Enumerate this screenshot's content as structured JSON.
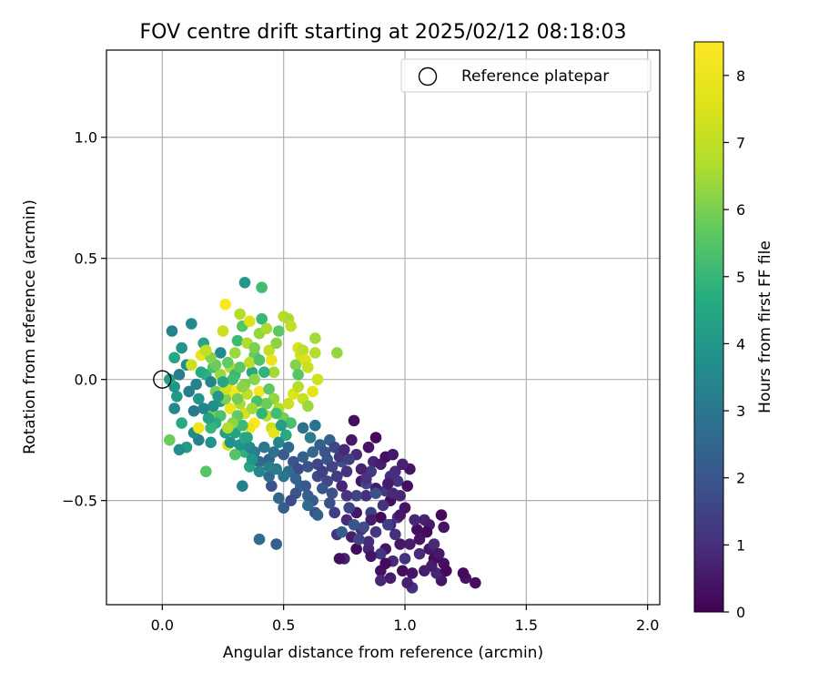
{
  "chart_data": {
    "type": "scatter",
    "title": "FOV centre drift starting at 2025/02/12 08:18:03",
    "xlabel": "Angular distance from reference (arcmin)",
    "ylabel": "Rotation from reference (arcmin)",
    "xlim": [
      -0.23,
      2.05
    ],
    "ylim": [
      -0.93,
      1.36
    ],
    "xticks": [
      0.0,
      0.5,
      1.0,
      1.5,
      2.0
    ],
    "xtick_labels": [
      "0.0",
      "0.5",
      "1.0",
      "1.5",
      "2.0"
    ],
    "yticks": [
      -0.5,
      0.0,
      0.5,
      1.0
    ],
    "ytick_labels": [
      "−0.5",
      "0.0",
      "0.5",
      "1.0"
    ],
    "grid": true,
    "legend": {
      "position": "top-right",
      "entries": [
        {
          "label": "Reference platepar",
          "marker": "open-circle"
        }
      ]
    },
    "reference_point": {
      "x": 0.0,
      "y": 0.0
    },
    "colorbar": {
      "label": "Hours from first FF file",
      "colormap": "viridis",
      "range": [
        0,
        8.5
      ],
      "ticks": [
        0,
        1,
        2,
        3,
        4,
        5,
        6,
        7,
        8
      ],
      "tick_labels": [
        "0",
        "1",
        "2",
        "3",
        "4",
        "5",
        "6",
        "7",
        "8"
      ]
    },
    "points": [
      [
        1.29,
        -0.84,
        0.3
      ],
      [
        1.25,
        -0.82,
        0.4
      ],
      [
        1.24,
        -0.8,
        0.2
      ],
      [
        1.15,
        -0.83,
        0.5
      ],
      [
        1.16,
        -0.76,
        0.3
      ],
      [
        1.13,
        -0.8,
        0.8
      ],
      [
        1.1,
        -0.7,
        0.5
      ],
      [
        1.12,
        -0.74,
        0.2
      ],
      [
        1.08,
        -0.79,
        0.6
      ],
      [
        1.03,
        -0.86,
        1.0
      ],
      [
        1.03,
        -0.8,
        0.4
      ],
      [
        1.06,
        -0.72,
        0.9
      ],
      [
        1.05,
        -0.62,
        0.3
      ],
      [
        1.08,
        -0.58,
        0.7
      ],
      [
        1.15,
        -0.56,
        0.2
      ],
      [
        1.16,
        -0.61,
        0.4
      ],
      [
        1.1,
        -0.6,
        0.6
      ],
      [
        1.0,
        -0.74,
        1.1
      ],
      [
        0.98,
        -0.68,
        0.5
      ],
      [
        0.95,
        -0.75,
        0.9
      ],
      [
        0.92,
        -0.7,
        0.4
      ],
      [
        0.9,
        -0.79,
        0.3
      ],
      [
        0.9,
        -0.72,
        1.2
      ],
      [
        0.85,
        -0.7,
        0.8
      ],
      [
        0.8,
        -0.7,
        0.2
      ],
      [
        0.82,
        -0.62,
        1.0
      ],
      [
        0.78,
        -0.65,
        0.6
      ],
      [
        0.75,
        -0.74,
        0.7
      ],
      [
        0.73,
        -0.74,
        0.3
      ],
      [
        0.72,
        -0.64,
        1.1
      ],
      [
        0.76,
        -0.58,
        0.9
      ],
      [
        0.8,
        -0.55,
        0.5
      ],
      [
        0.86,
        -0.55,
        1.4
      ],
      [
        0.9,
        -0.57,
        0.2
      ],
      [
        0.94,
        -0.6,
        0.7
      ],
      [
        0.97,
        -0.57,
        1.0
      ],
      [
        1.0,
        -0.53,
        0.4
      ],
      [
        0.98,
        -0.48,
        0.8
      ],
      [
        0.94,
        -0.5,
        0.3
      ],
      [
        0.92,
        -0.46,
        1.3
      ],
      [
        0.88,
        -0.45,
        0.6
      ],
      [
        0.84,
        -0.48,
        1.0
      ],
      [
        0.82,
        -0.42,
        0.4
      ],
      [
        0.8,
        -0.48,
        1.5
      ],
      [
        0.76,
        -0.48,
        1.2
      ],
      [
        0.74,
        -0.44,
        0.8
      ],
      [
        0.7,
        -0.47,
        1.9
      ],
      [
        0.68,
        -0.42,
        1.6
      ],
      [
        0.66,
        -0.45,
        2.0
      ],
      [
        0.64,
        -0.4,
        1.7
      ],
      [
        0.62,
        -0.5,
        2.1
      ],
      [
        0.63,
        -0.55,
        1.8
      ],
      [
        0.6,
        -0.48,
        2.2
      ],
      [
        0.57,
        -0.44,
        2.4
      ],
      [
        0.55,
        -0.47,
        2.0
      ],
      [
        0.53,
        -0.5,
        1.7
      ],
      [
        0.5,
        -0.53,
        2.2
      ],
      [
        0.48,
        -0.49,
        2.5
      ],
      [
        0.45,
        -0.44,
        1.9
      ],
      [
        0.44,
        -0.4,
        2.6
      ],
      [
        0.47,
        -0.68,
        2.3
      ],
      [
        0.4,
        -0.66,
        2.7
      ],
      [
        0.33,
        -0.44,
        3.3
      ],
      [
        0.36,
        -0.36,
        4.4
      ],
      [
        0.34,
        -0.3,
        4.8
      ],
      [
        0.3,
        -0.31,
        5.5
      ],
      [
        0.27,
        -0.27,
        7.5
      ],
      [
        0.26,
        -0.22,
        4.2
      ],
      [
        0.2,
        -0.26,
        3.8
      ],
      [
        0.18,
        -0.38,
        5.5
      ],
      [
        0.15,
        -0.25,
        3.3
      ],
      [
        0.13,
        -0.22,
        3.6
      ],
      [
        0.15,
        -0.2,
        8.0
      ],
      [
        0.1,
        -0.28,
        4.1
      ],
      [
        0.07,
        -0.29,
        3.7
      ],
      [
        0.03,
        -0.25,
        5.8
      ],
      [
        0.08,
        -0.18,
        4.6
      ],
      [
        0.13,
        -0.13,
        3.0
      ],
      [
        0.05,
        -0.12,
        3.5
      ],
      [
        0.06,
        -0.07,
        4.0
      ],
      [
        0.11,
        -0.05,
        3.2
      ],
      [
        0.05,
        -0.03,
        3.8
      ],
      [
        0.03,
        0.0,
        4.2
      ],
      [
        0.07,
        0.02,
        3.1
      ],
      [
        0.1,
        0.06,
        3.6
      ],
      [
        0.05,
        0.09,
        4.5
      ],
      [
        0.08,
        0.13,
        3.9
      ],
      [
        0.04,
        0.2,
        3.3
      ],
      [
        0.12,
        0.23,
        3.5
      ],
      [
        0.12,
        0.06,
        7.2
      ],
      [
        0.17,
        0.15,
        4.4
      ],
      [
        0.16,
        0.1,
        7.9
      ],
      [
        0.18,
        0.02,
        4.8
      ],
      [
        0.21,
        0.05,
        5.3
      ],
      [
        0.2,
        -0.01,
        3.4
      ],
      [
        0.22,
        -0.05,
        5.9
      ],
      [
        0.24,
        -0.09,
        4.1
      ],
      [
        0.21,
        -0.14,
        6.0
      ],
      [
        0.24,
        0.11,
        3.6
      ],
      [
        0.25,
        0.2,
        7.2
      ],
      [
        0.26,
        0.31,
        8.4
      ],
      [
        0.28,
        0.05,
        6.8
      ],
      [
        0.27,
        -0.02,
        7.6
      ],
      [
        0.29,
        -0.06,
        8.2
      ],
      [
        0.3,
        0.11,
        6.4
      ],
      [
        0.31,
        0.16,
        5.1
      ],
      [
        0.32,
        0.27,
        6.8
      ],
      [
        0.34,
        0.4,
        4.0
      ],
      [
        0.33,
        0.22,
        5.5
      ],
      [
        0.35,
        0.15,
        6.7
      ],
      [
        0.36,
        0.24,
        7.6
      ],
      [
        0.37,
        0.03,
        4.6
      ],
      [
        0.38,
        0.1,
        5.7
      ],
      [
        0.4,
        0.19,
        6.3
      ],
      [
        0.41,
        0.25,
        5.0
      ],
      [
        0.41,
        0.38,
        5.2
      ],
      [
        0.43,
        0.21,
        6.6
      ],
      [
        0.44,
        0.12,
        7.0
      ],
      [
        0.45,
        0.08,
        7.9
      ],
      [
        0.46,
        0.03,
        6.5
      ],
      [
        0.47,
        0.15,
        6.2
      ],
      [
        0.48,
        0.2,
        5.6
      ],
      [
        0.5,
        0.26,
        6.8
      ],
      [
        0.52,
        0.25,
        6.6
      ],
      [
        0.53,
        0.22,
        7.0
      ],
      [
        0.55,
        0.06,
        6.1
      ],
      [
        0.56,
        0.13,
        7.4
      ],
      [
        0.57,
        0.1,
        7.3
      ],
      [
        0.58,
        0.12,
        6.9
      ],
      [
        0.59,
        0.08,
        7.5
      ],
      [
        0.6,
        0.05,
        7.1
      ],
      [
        0.63,
        0.11,
        6.7
      ],
      [
        0.63,
        0.17,
        6.5
      ],
      [
        0.72,
        0.11,
        6.3
      ],
      [
        0.38,
        0.0,
        6.2
      ],
      [
        0.4,
        -0.05,
        8.3
      ],
      [
        0.42,
        -0.1,
        7.7
      ],
      [
        0.43,
        -0.15,
        6.9
      ],
      [
        0.45,
        -0.2,
        7.2
      ],
      [
        0.46,
        -0.22,
        7.8
      ],
      [
        0.38,
        -0.18,
        8.5
      ],
      [
        0.36,
        -0.2,
        8.0
      ],
      [
        0.34,
        -0.14,
        7.4
      ],
      [
        0.32,
        -0.1,
        6.6
      ],
      [
        0.3,
        -0.05,
        8.3
      ],
      [
        0.28,
        -0.12,
        8.1
      ],
      [
        0.26,
        -0.08,
        6.0
      ],
      [
        0.24,
        -0.15,
        5.4
      ],
      [
        0.22,
        -0.18,
        4.7
      ],
      [
        0.2,
        -0.2,
        5.0
      ],
      [
        0.28,
        -0.26,
        3.8
      ],
      [
        0.3,
        -0.22,
        4.3
      ],
      [
        0.32,
        -0.27,
        3.9
      ],
      [
        0.34,
        -0.24,
        4.7
      ],
      [
        0.36,
        -0.28,
        3.6
      ],
      [
        0.38,
        -0.3,
        3.2
      ],
      [
        0.4,
        -0.34,
        2.6
      ],
      [
        0.42,
        -0.28,
        3.0
      ],
      [
        0.44,
        -0.33,
        2.4
      ],
      [
        0.46,
        -0.3,
        2.8
      ],
      [
        0.48,
        -0.26,
        3.4
      ],
      [
        0.5,
        -0.31,
        2.2
      ],
      [
        0.52,
        -0.28,
        2.6
      ],
      [
        0.54,
        -0.34,
        2.0
      ],
      [
        0.56,
        -0.37,
        1.7
      ],
      [
        0.58,
        -0.32,
        2.3
      ],
      [
        0.6,
        -0.36,
        1.9
      ],
      [
        0.62,
        -0.3,
        2.5
      ],
      [
        0.64,
        -0.35,
        1.6
      ],
      [
        0.66,
        -0.38,
        1.4
      ],
      [
        0.68,
        -0.33,
        2.0
      ],
      [
        0.7,
        -0.36,
        1.5
      ],
      [
        0.72,
        -0.4,
        1.3
      ],
      [
        0.74,
        -0.34,
        1.8
      ],
      [
        0.76,
        -0.38,
        1.1
      ],
      [
        0.78,
        -0.25,
        0.5
      ],
      [
        0.8,
        -0.31,
        0.9
      ],
      [
        0.79,
        -0.17,
        0.3
      ],
      [
        0.85,
        -0.28,
        0.4
      ],
      [
        0.87,
        -0.34,
        0.8
      ],
      [
        0.88,
        -0.24,
        0.2
      ],
      [
        0.9,
        -0.35,
        0.6
      ],
      [
        0.92,
        -0.32,
        0.3
      ],
      [
        0.95,
        -0.31,
        0.5
      ],
      [
        0.96,
        -0.38,
        0.9
      ],
      [
        0.97,
        -0.42,
        1.2
      ],
      [
        1.02,
        -0.37,
        0.4
      ],
      [
        0.99,
        -0.35,
        0.7
      ],
      [
        0.94,
        -0.4,
        1.0
      ],
      [
        0.86,
        -0.38,
        1.3
      ],
      [
        0.84,
        -0.43,
        1.6
      ],
      [
        0.88,
        -0.47,
        1.9
      ],
      [
        0.91,
        -0.52,
        1.1
      ],
      [
        0.86,
        -0.58,
        0.6
      ],
      [
        0.83,
        -0.61,
        1.7
      ],
      [
        0.79,
        -0.6,
        2.0
      ],
      [
        0.77,
        -0.53,
        1.5
      ],
      [
        0.74,
        -0.63,
        2.2
      ],
      [
        0.71,
        -0.55,
        1.4
      ],
      [
        0.69,
        -0.51,
        1.8
      ],
      [
        0.64,
        -0.56,
        2.3
      ],
      [
        0.6,
        -0.52,
        2.6
      ],
      [
        0.59,
        -0.44,
        2.1
      ],
      [
        0.55,
        -0.41,
        2.4
      ],
      [
        0.52,
        -0.38,
        2.7
      ],
      [
        0.5,
        -0.4,
        2.9
      ],
      [
        0.47,
        -0.37,
        3.1
      ],
      [
        0.44,
        -0.36,
        3.3
      ],
      [
        0.4,
        -0.38,
        3.5
      ],
      [
        0.37,
        -0.33,
        3.9
      ],
      [
        0.35,
        -0.24,
        4.4
      ],
      [
        0.33,
        -0.19,
        5.1
      ],
      [
        0.31,
        -0.15,
        5.7
      ],
      [
        0.29,
        -0.18,
        6.2
      ],
      [
        0.27,
        -0.2,
        6.7
      ],
      [
        0.26,
        -0.04,
        7.3
      ],
      [
        0.24,
        0.02,
        6.4
      ],
      [
        0.22,
        0.06,
        5.8
      ],
      [
        0.2,
        0.09,
        6.1
      ],
      [
        0.18,
        0.12,
        7.0
      ],
      [
        0.3,
        0.02,
        5.0
      ],
      [
        0.32,
        0.05,
        5.6
      ],
      [
        0.34,
        -0.02,
        6.0
      ],
      [
        0.36,
        0.07,
        6.9
      ],
      [
        0.38,
        0.13,
        6.0
      ],
      [
        0.4,
        0.08,
        5.4
      ],
      [
        0.42,
        0.03,
        4.9
      ],
      [
        0.44,
        -0.04,
        5.6
      ],
      [
        0.46,
        -0.08,
        6.3
      ],
      [
        0.48,
        -0.12,
        6.7
      ],
      [
        0.5,
        -0.16,
        5.9
      ],
      [
        0.52,
        -0.1,
        7.2
      ],
      [
        0.54,
        -0.06,
        7.6
      ],
      [
        0.56,
        -0.03,
        6.8
      ],
      [
        0.58,
        -0.08,
        7.1
      ],
      [
        0.6,
        -0.11,
        6.4
      ],
      [
        0.62,
        -0.05,
        7.8
      ],
      [
        0.64,
        0.0,
        7.3
      ],
      [
        0.56,
        0.02,
        5.5
      ],
      [
        0.53,
        -0.18,
        5.3
      ],
      [
        0.51,
        -0.23,
        4.6
      ],
      [
        0.49,
        -0.19,
        4.2
      ],
      [
        0.47,
        -0.14,
        5.2
      ],
      [
        0.43,
        -0.1,
        5.8
      ],
      [
        0.41,
        -0.14,
        4.9
      ],
      [
        0.39,
        -0.09,
        5.3
      ],
      [
        0.37,
        -0.12,
        6.5
      ],
      [
        0.35,
        -0.06,
        7.0
      ],
      [
        0.33,
        -0.03,
        6.2
      ],
      [
        0.31,
        -0.08,
        5.9
      ],
      [
        0.29,
        0.0,
        5.2
      ],
      [
        0.27,
        0.07,
        5.7
      ],
      [
        0.25,
        -0.01,
        4.5
      ],
      [
        0.23,
        -0.07,
        4.0
      ],
      [
        0.21,
        -0.11,
        3.7
      ],
      [
        0.19,
        -0.16,
        4.3
      ],
      [
        0.17,
        -0.12,
        3.4
      ],
      [
        0.15,
        -0.08,
        3.9
      ],
      [
        0.14,
        -0.02,
        3.3
      ],
      [
        0.16,
        0.03,
        4.6
      ],
      [
        0.58,
        -0.2,
        2.8
      ],
      [
        0.61,
        -0.24,
        3.2
      ],
      [
        0.63,
        -0.19,
        2.9
      ],
      [
        0.65,
        -0.27,
        2.3
      ],
      [
        0.67,
        -0.3,
        1.9
      ],
      [
        0.69,
        -0.25,
        2.4
      ],
      [
        0.71,
        -0.28,
        1.6
      ],
      [
        0.73,
        -0.32,
        1.2
      ],
      [
        0.75,
        -0.29,
        0.9
      ],
      [
        0.77,
        -0.33,
        1.4
      ],
      [
        0.82,
        -0.37,
        0.7
      ],
      [
        0.84,
        -0.41,
        1.1
      ],
      [
        0.93,
        -0.43,
        0.6
      ],
      [
        0.95,
        -0.47,
        0.9
      ],
      [
        1.01,
        -0.44,
        0.3
      ],
      [
        0.98,
        -0.56,
        0.5
      ],
      [
        1.04,
        -0.58,
        0.8
      ],
      [
        1.06,
        -0.66,
        0.4
      ],
      [
        1.09,
        -0.63,
        0.2
      ],
      [
        1.02,
        -0.68,
        0.6
      ],
      [
        0.96,
        -0.64,
        1.0
      ],
      [
        0.93,
        -0.6,
        1.4
      ],
      [
        0.88,
        -0.63,
        1.2
      ],
      [
        0.85,
        -0.67,
        0.9
      ],
      [
        0.81,
        -0.66,
        1.5
      ],
      [
        0.86,
        -0.73,
        0.4
      ],
      [
        0.92,
        -0.76,
        0.2
      ],
      [
        0.94,
        -0.82,
        0.6
      ],
      [
        0.9,
        -0.83,
        0.8
      ],
      [
        0.99,
        -0.79,
        0.3
      ],
      [
        1.01,
        -0.84,
        0.7
      ],
      [
        1.12,
        -0.68,
        0.9
      ],
      [
        1.14,
        -0.72,
        0.5
      ],
      [
        1.17,
        -0.79,
        0.2
      ],
      [
        1.11,
        -0.77,
        0.6
      ]
    ]
  }
}
